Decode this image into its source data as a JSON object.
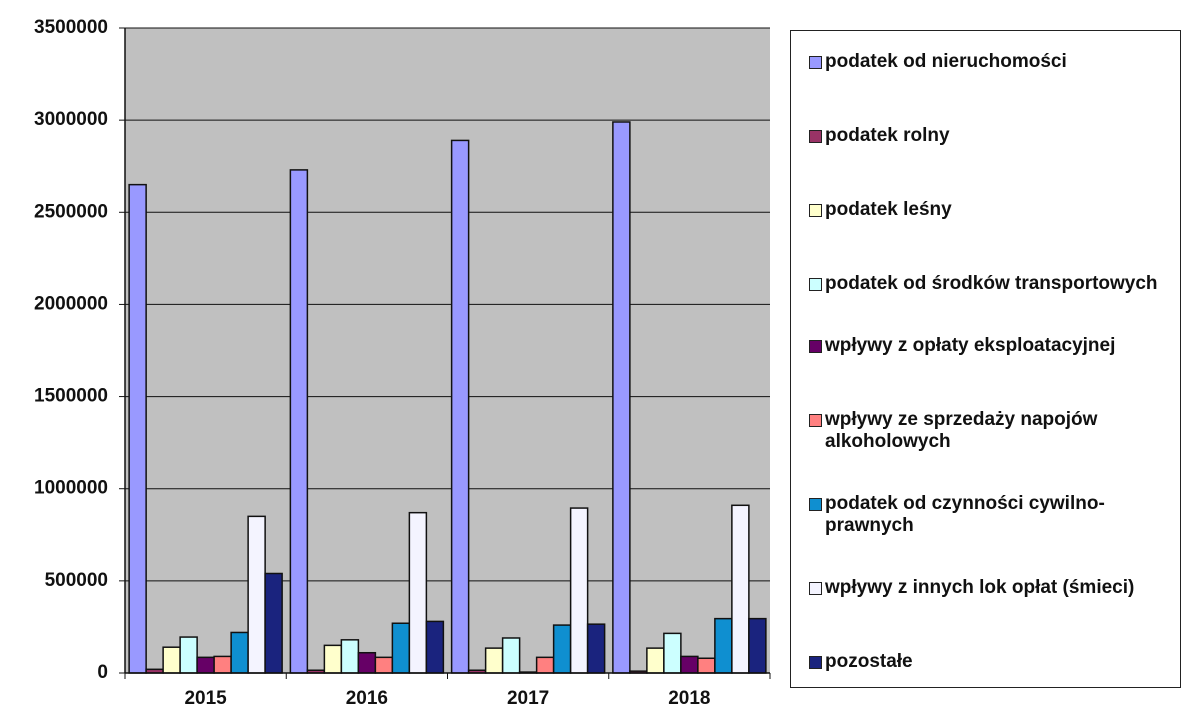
{
  "chart_data": {
    "type": "bar",
    "categories": [
      "2015",
      "2016",
      "2017",
      "2018"
    ],
    "series": [
      {
        "name": "podatek od nieruchomości",
        "color": "#9999ff",
        "values": [
          2650000,
          2730000,
          2890000,
          2990000
        ]
      },
      {
        "name": "podatek rolny",
        "color": "#993366",
        "values": [
          20000,
          15000,
          15000,
          10000
        ]
      },
      {
        "name": "podatek leśny",
        "color": "#ffffcc",
        "values": [
          140000,
          150000,
          135000,
          135000
        ]
      },
      {
        "name": "podatek od środków transportowych",
        "color": "#ccffff",
        "values": [
          195000,
          180000,
          190000,
          215000
        ]
      },
      {
        "name": "wpływy z opłaty eksploatacyjnej",
        "color": "#660066",
        "values": [
          85000,
          110000,
          5000,
          90000
        ]
      },
      {
        "name": "wpływy ze sprzedaży napojów alkoholowych",
        "color": "#ff8080",
        "values": [
          90000,
          85000,
          85000,
          80000
        ]
      },
      {
        "name": "podatek od czynności cywilno-prawnych",
        "color": "#0f8fd0",
        "values": [
          220000,
          270000,
          260000,
          295000
        ]
      },
      {
        "name": "wpływy z innych lok opłat (śmieci)",
        "color": "#f4f4ff",
        "values": [
          850000,
          870000,
          895000,
          910000
        ]
      },
      {
        "name": "pozostałe",
        "color": "#1a237e",
        "values": [
          540000,
          280000,
          265000,
          295000
        ]
      }
    ],
    "ylim": [
      0,
      3500000
    ],
    "yticks": [
      0,
      500000,
      1000000,
      1500000,
      2000000,
      2500000,
      3000000,
      3500000
    ],
    "grid": true,
    "legend": "right"
  }
}
